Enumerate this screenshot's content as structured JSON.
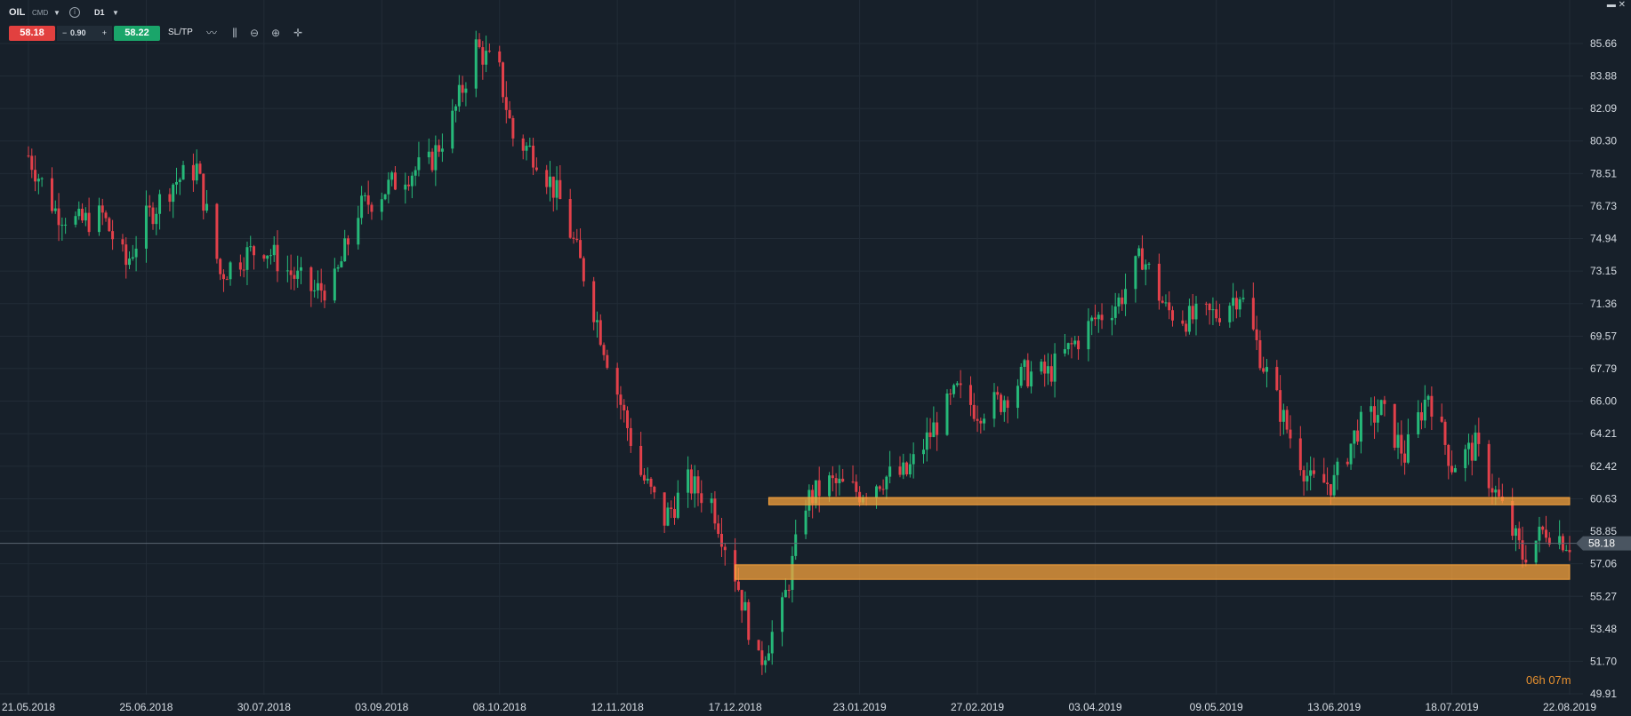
{
  "toolbar": {
    "symbol": "OIL",
    "symbol_type": "CMD",
    "timeframe": "D1",
    "sell_price": "58.18",
    "volume": "0.90",
    "buy_price": "58.22",
    "sltp_label": "SL/TP"
  },
  "countdown": {
    "hours": "06h",
    "minutes": "07m"
  },
  "colors": {
    "background": "#17202a",
    "bull": "#26b979",
    "bear": "#e2404a",
    "zone": "#f7a23c",
    "grid": "#222c37"
  },
  "icons": [
    "info-icon",
    "line-chart-icon",
    "candles-icon",
    "zoom-out-icon",
    "zoom-in-icon",
    "crosshair-icon",
    "minimize-icon",
    "close-icon"
  ],
  "chart_data": {
    "type": "candlestick",
    "symbol": "OIL",
    "timeframe": "D1",
    "y_ticks": [
      "85.66",
      "83.88",
      "82.09",
      "80.30",
      "78.51",
      "76.73",
      "74.94",
      "73.15",
      "71.36",
      "69.57",
      "67.79",
      "66.00",
      "64.21",
      "62.42",
      "60.63",
      "58.85",
      "57.06",
      "55.27",
      "53.48",
      "51.70",
      "49.91"
    ],
    "ylim": [
      49.91,
      85.66
    ],
    "x_ticks": [
      "21.05.2018",
      "25.06.2018",
      "30.07.2018",
      "03.09.2018",
      "08.10.2018",
      "12.11.2018",
      "17.12.2018",
      "23.01.2019",
      "27.02.2019",
      "03.04.2019",
      "09.05.2019",
      "13.06.2019",
      "18.07.2019",
      "22.08.2019"
    ],
    "current_price": "58.18",
    "price_trend": [
      [
        "21.05.2018",
        79.5
      ],
      [
        "29.05.2018",
        76.5
      ],
      [
        "05.06.2018",
        75.8
      ],
      [
        "12.06.2018",
        76.2
      ],
      [
        "19.06.2018",
        73.5
      ],
      [
        "25.06.2018",
        76.0
      ],
      [
        "03.07.2018",
        78.0
      ],
      [
        "10.07.2018",
        78.8
      ],
      [
        "17.07.2018",
        73.0
      ],
      [
        "24.07.2018",
        74.0
      ],
      [
        "30.07.2018",
        74.5
      ],
      [
        "07.08.2018",
        73.0
      ],
      [
        "14.08.2018",
        72.0
      ],
      [
        "20.08.2018",
        72.5
      ],
      [
        "27.08.2018",
        76.5
      ],
      [
        "03.09.2018",
        77.5
      ],
      [
        "10.09.2018",
        78.5
      ],
      [
        "17.09.2018",
        79.0
      ],
      [
        "24.09.2018",
        81.5
      ],
      [
        "01.10.2018",
        85.5
      ],
      [
        "08.10.2018",
        84.0
      ],
      [
        "12.10.2018",
        80.5
      ],
      [
        "19.10.2018",
        79.5
      ],
      [
        "26.10.2018",
        77.0
      ],
      [
        "02.11.2018",
        73.0
      ],
      [
        "12.11.2018",
        66.5
      ],
      [
        "19.11.2018",
        62.0
      ],
      [
        "26.11.2018",
        59.5
      ],
      [
        "03.12.2018",
        61.5
      ],
      [
        "10.12.2018",
        60.5
      ],
      [
        "17.12.2018",
        56.5
      ],
      [
        "24.12.2018",
        51.5
      ],
      [
        "31.12.2018",
        54.5
      ],
      [
        "07.01.2019",
        60.5
      ],
      [
        "14.01.2019",
        61.5
      ],
      [
        "23.01.2019",
        61.0
      ],
      [
        "30.01.2019",
        61.8
      ],
      [
        "06.02.2019",
        62.0
      ],
      [
        "14.02.2019",
        64.5
      ],
      [
        "21.02.2019",
        66.5
      ],
      [
        "27.02.2019",
        65.5
      ],
      [
        "06.03.2019",
        66.0
      ],
      [
        "13.03.2019",
        67.5
      ],
      [
        "20.03.2019",
        67.5
      ],
      [
        "27.03.2019",
        69.0
      ],
      [
        "03.04.2019",
        70.5
      ],
      [
        "10.04.2019",
        71.5
      ],
      [
        "17.04.2019",
        74.0
      ],
      [
        "24.04.2019",
        71.0
      ],
      [
        "01.05.2019",
        70.5
      ],
      [
        "09.05.2019",
        70.8
      ],
      [
        "16.05.2019",
        72.0
      ],
      [
        "23.05.2019",
        68.0
      ],
      [
        "30.05.2019",
        64.5
      ],
      [
        "06.06.2019",
        61.5
      ],
      [
        "13.06.2019",
        61.5
      ],
      [
        "20.06.2019",
        64.5
      ],
      [
        "27.06.2019",
        65.5
      ],
      [
        "04.07.2019",
        63.0
      ],
      [
        "11.07.2019",
        66.5
      ],
      [
        "18.07.2019",
        62.5
      ],
      [
        "25.07.2019",
        63.5
      ],
      [
        "01.08.2019",
        60.5
      ],
      [
        "08.08.2019",
        57.5
      ],
      [
        "15.08.2019",
        59.0
      ],
      [
        "22.08.2019",
        58.2
      ]
    ],
    "zones": [
      {
        "from": "27.12.2018",
        "to": "22.08.2019",
        "low": 60.3,
        "high": 60.7
      },
      {
        "from": "17.12.2018",
        "to": "22.08.2019",
        "low": 56.2,
        "high": 57.0
      }
    ]
  }
}
